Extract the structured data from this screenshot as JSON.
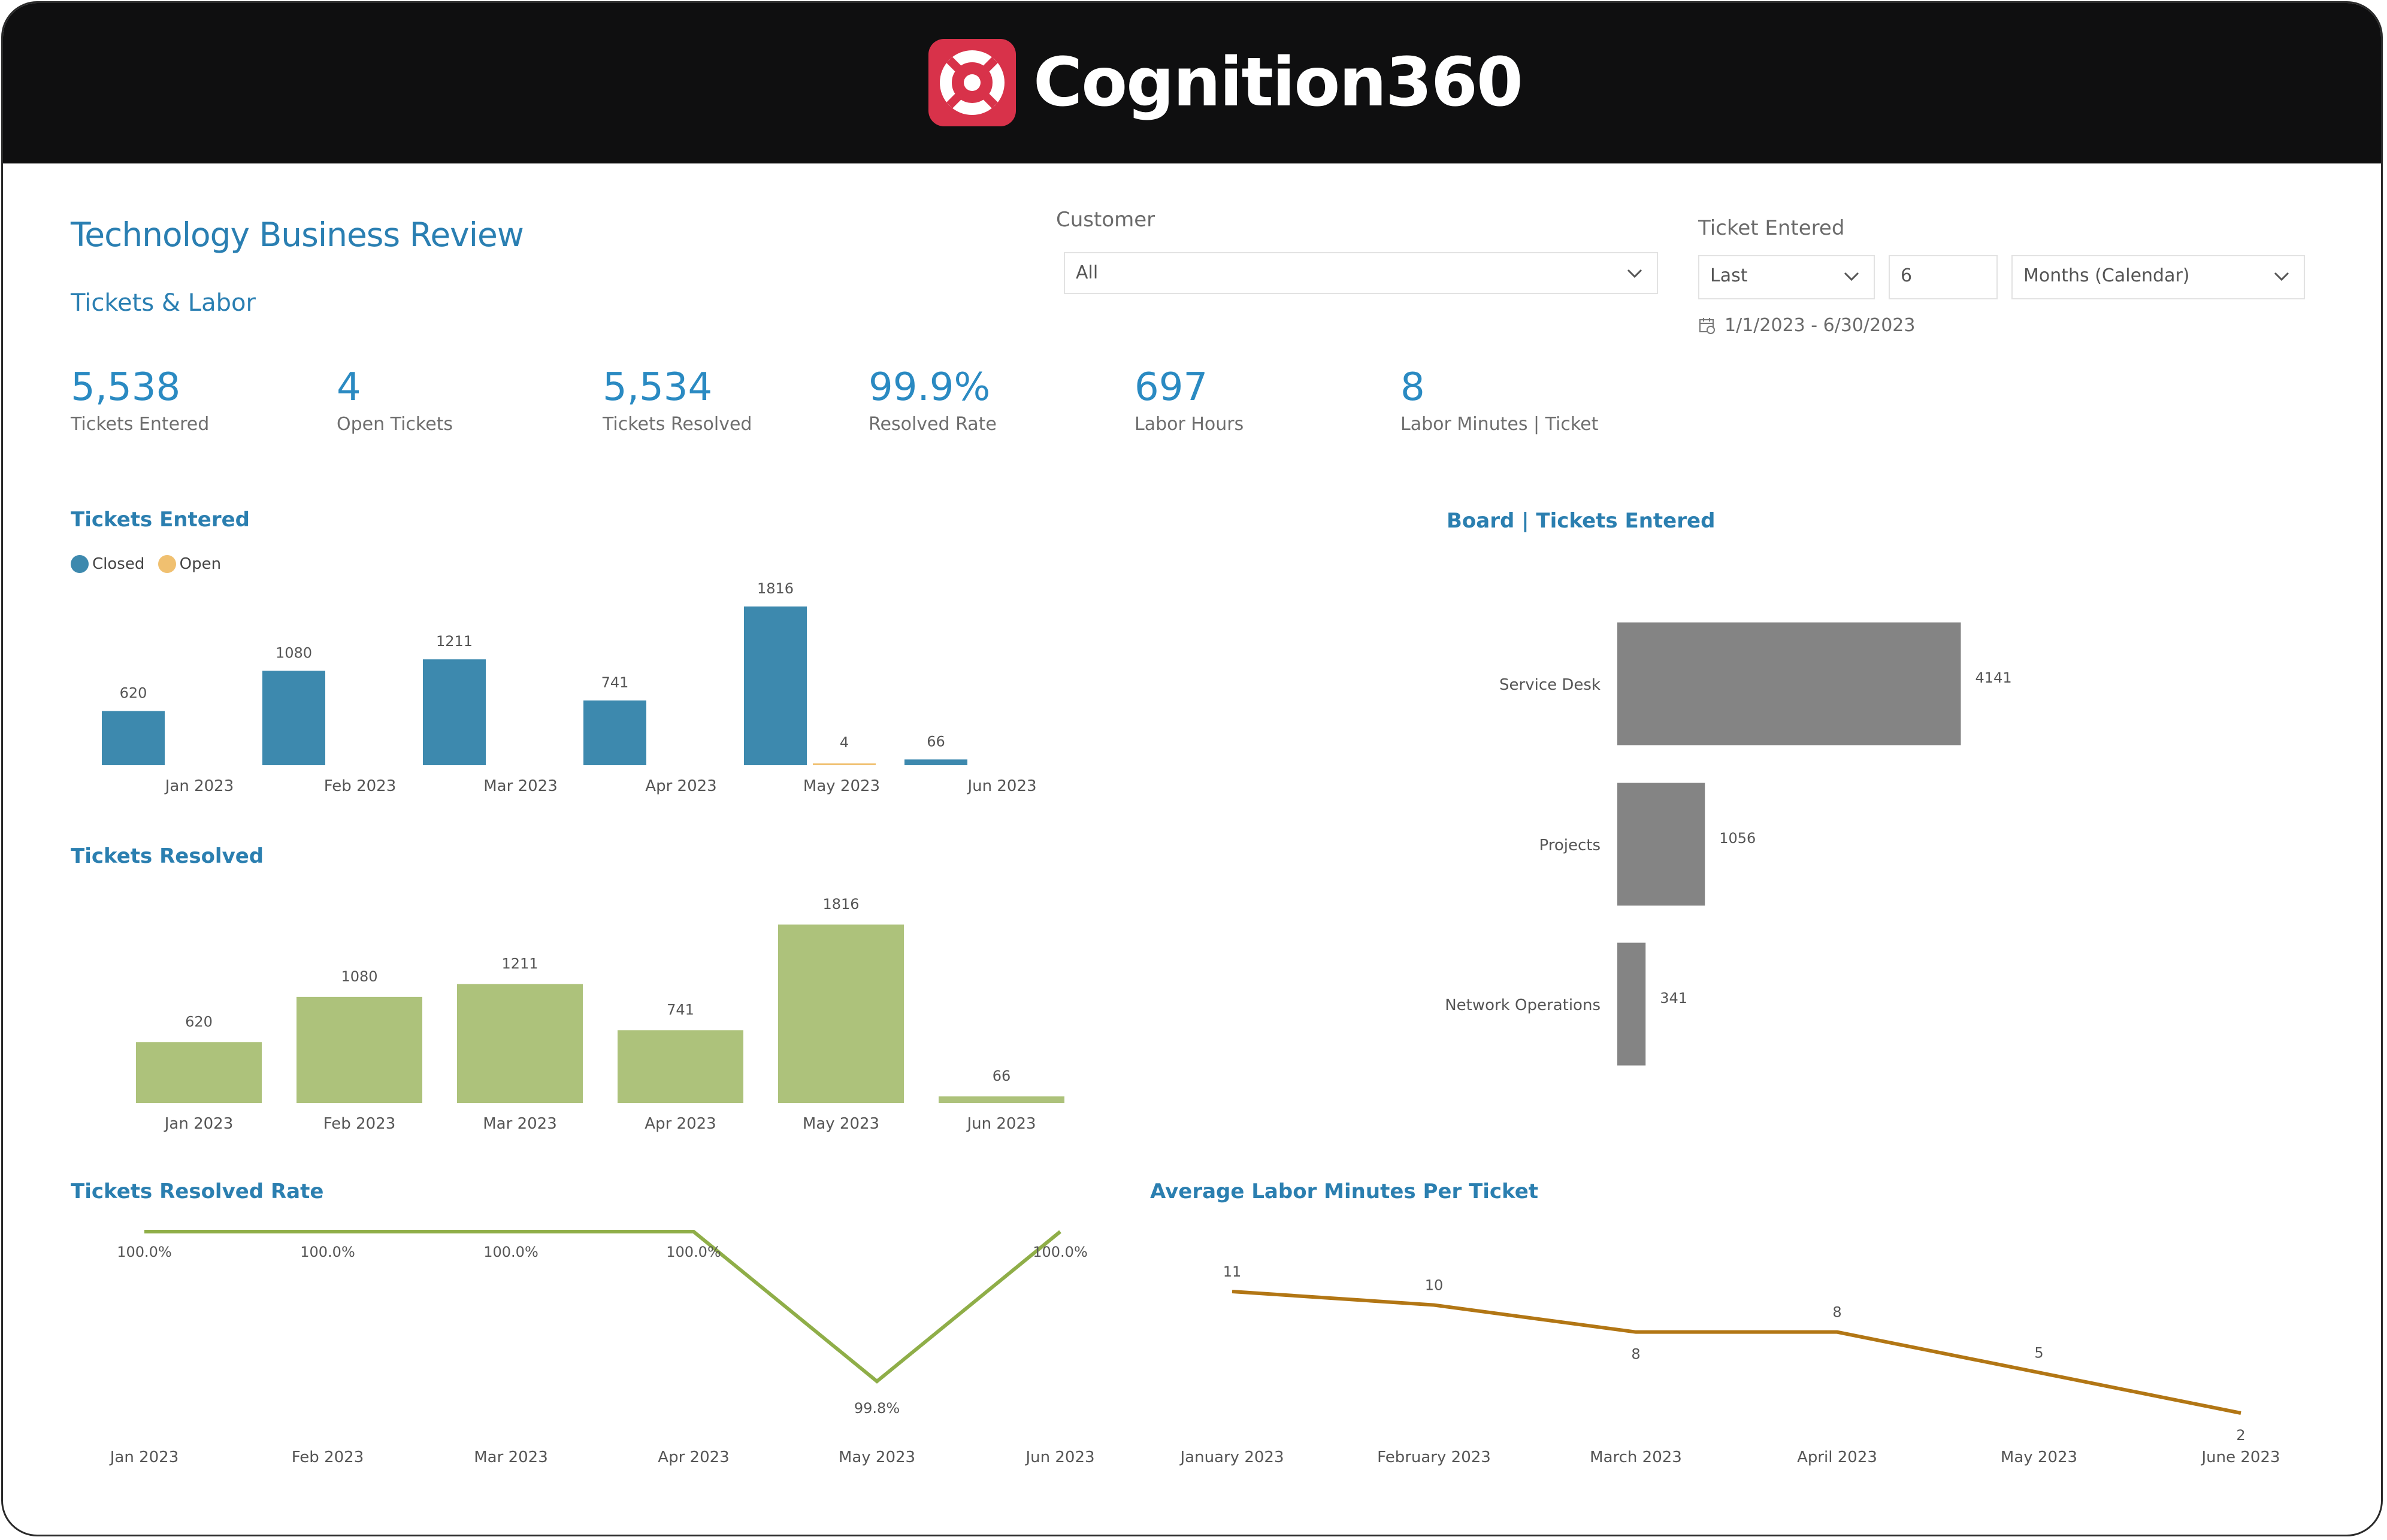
{
  "brand": {
    "name": "Cognition360",
    "logo_color": "#d8324a"
  },
  "header": {
    "title": "Technology Business Review",
    "subtitle": "Tickets & Labor"
  },
  "filters": {
    "customer": {
      "label": "Customer",
      "value": "All"
    },
    "ticket_entered": {
      "label": "Ticket Entered",
      "mode": "Last",
      "count": "6",
      "unit": "Months (Calendar)",
      "date_range": "1/1/2023 - 6/30/2023"
    }
  },
  "kpis": [
    {
      "value": "5,538",
      "label": "Tickets Entered"
    },
    {
      "value": "4",
      "label": "Open Tickets"
    },
    {
      "value": "5,534",
      "label": "Tickets Resolved"
    },
    {
      "value": "99.9%",
      "label": "Resolved Rate"
    },
    {
      "value": "697",
      "label": "Labor Hours"
    },
    {
      "value": "8",
      "label": "Labor Minutes | Ticket"
    }
  ],
  "charts": {
    "tickets_entered": {
      "title": "Tickets Entered",
      "legend": [
        {
          "name": "Closed",
          "color": "#3d89ae"
        },
        {
          "name": "Open",
          "color": "#f0c070"
        }
      ]
    },
    "tickets_resolved": {
      "title": "Tickets Resolved"
    },
    "board": {
      "title": "Board | Tickets Entered"
    },
    "resolved_rate": {
      "title": "Tickets Resolved Rate"
    },
    "avg_labor": {
      "title": "Average Labor Minutes Per Ticket"
    }
  },
  "chart_data": [
    {
      "id": "tickets_entered",
      "type": "bar",
      "title": "Tickets Entered",
      "categories": [
        "Jan 2023",
        "Feb 2023",
        "Mar 2023",
        "Apr 2023",
        "May 2023",
        "Jun 2023"
      ],
      "series": [
        {
          "name": "Closed",
          "color": "#3d89ae",
          "values": [
            620,
            1080,
            1211,
            741,
            1816,
            66
          ]
        },
        {
          "name": "Open",
          "color": "#f0c070",
          "values": [
            null,
            null,
            null,
            null,
            4,
            null
          ]
        }
      ]
    },
    {
      "id": "tickets_resolved",
      "type": "bar",
      "title": "Tickets Resolved",
      "color": "#adc27b",
      "categories": [
        "Jan 2023",
        "Feb 2023",
        "Mar 2023",
        "Apr 2023",
        "May 2023",
        "Jun 2023"
      ],
      "values": [
        620,
        1080,
        1211,
        741,
        1816,
        66
      ]
    },
    {
      "id": "board",
      "type": "bar",
      "orientation": "horizontal",
      "title": "Board | Tickets Entered",
      "color": "#848484",
      "categories": [
        "Service Desk",
        "Projects",
        "Network Operations"
      ],
      "values": [
        4141,
        1056,
        341
      ]
    },
    {
      "id": "resolved_rate",
      "type": "line",
      "title": "Tickets Resolved Rate",
      "color": "#8fae48",
      "categories": [
        "Jan 2023",
        "Feb 2023",
        "Mar 2023",
        "Apr 2023",
        "May 2023",
        "Jun 2023"
      ],
      "values": [
        100.0,
        100.0,
        100.0,
        100.0,
        99.8,
        100.0
      ],
      "labels": [
        "100.0%",
        "100.0%",
        "100.0%",
        "100.0%",
        "99.8%",
        "100.0%"
      ]
    },
    {
      "id": "avg_labor",
      "type": "line",
      "title": "Average Labor Minutes Per Ticket",
      "color": "#b27614",
      "categories": [
        "January 2023",
        "February 2023",
        "March 2023",
        "April 2023",
        "May 2023",
        "June 2023"
      ],
      "values": [
        11,
        10,
        8,
        8,
        5,
        2
      ]
    }
  ]
}
